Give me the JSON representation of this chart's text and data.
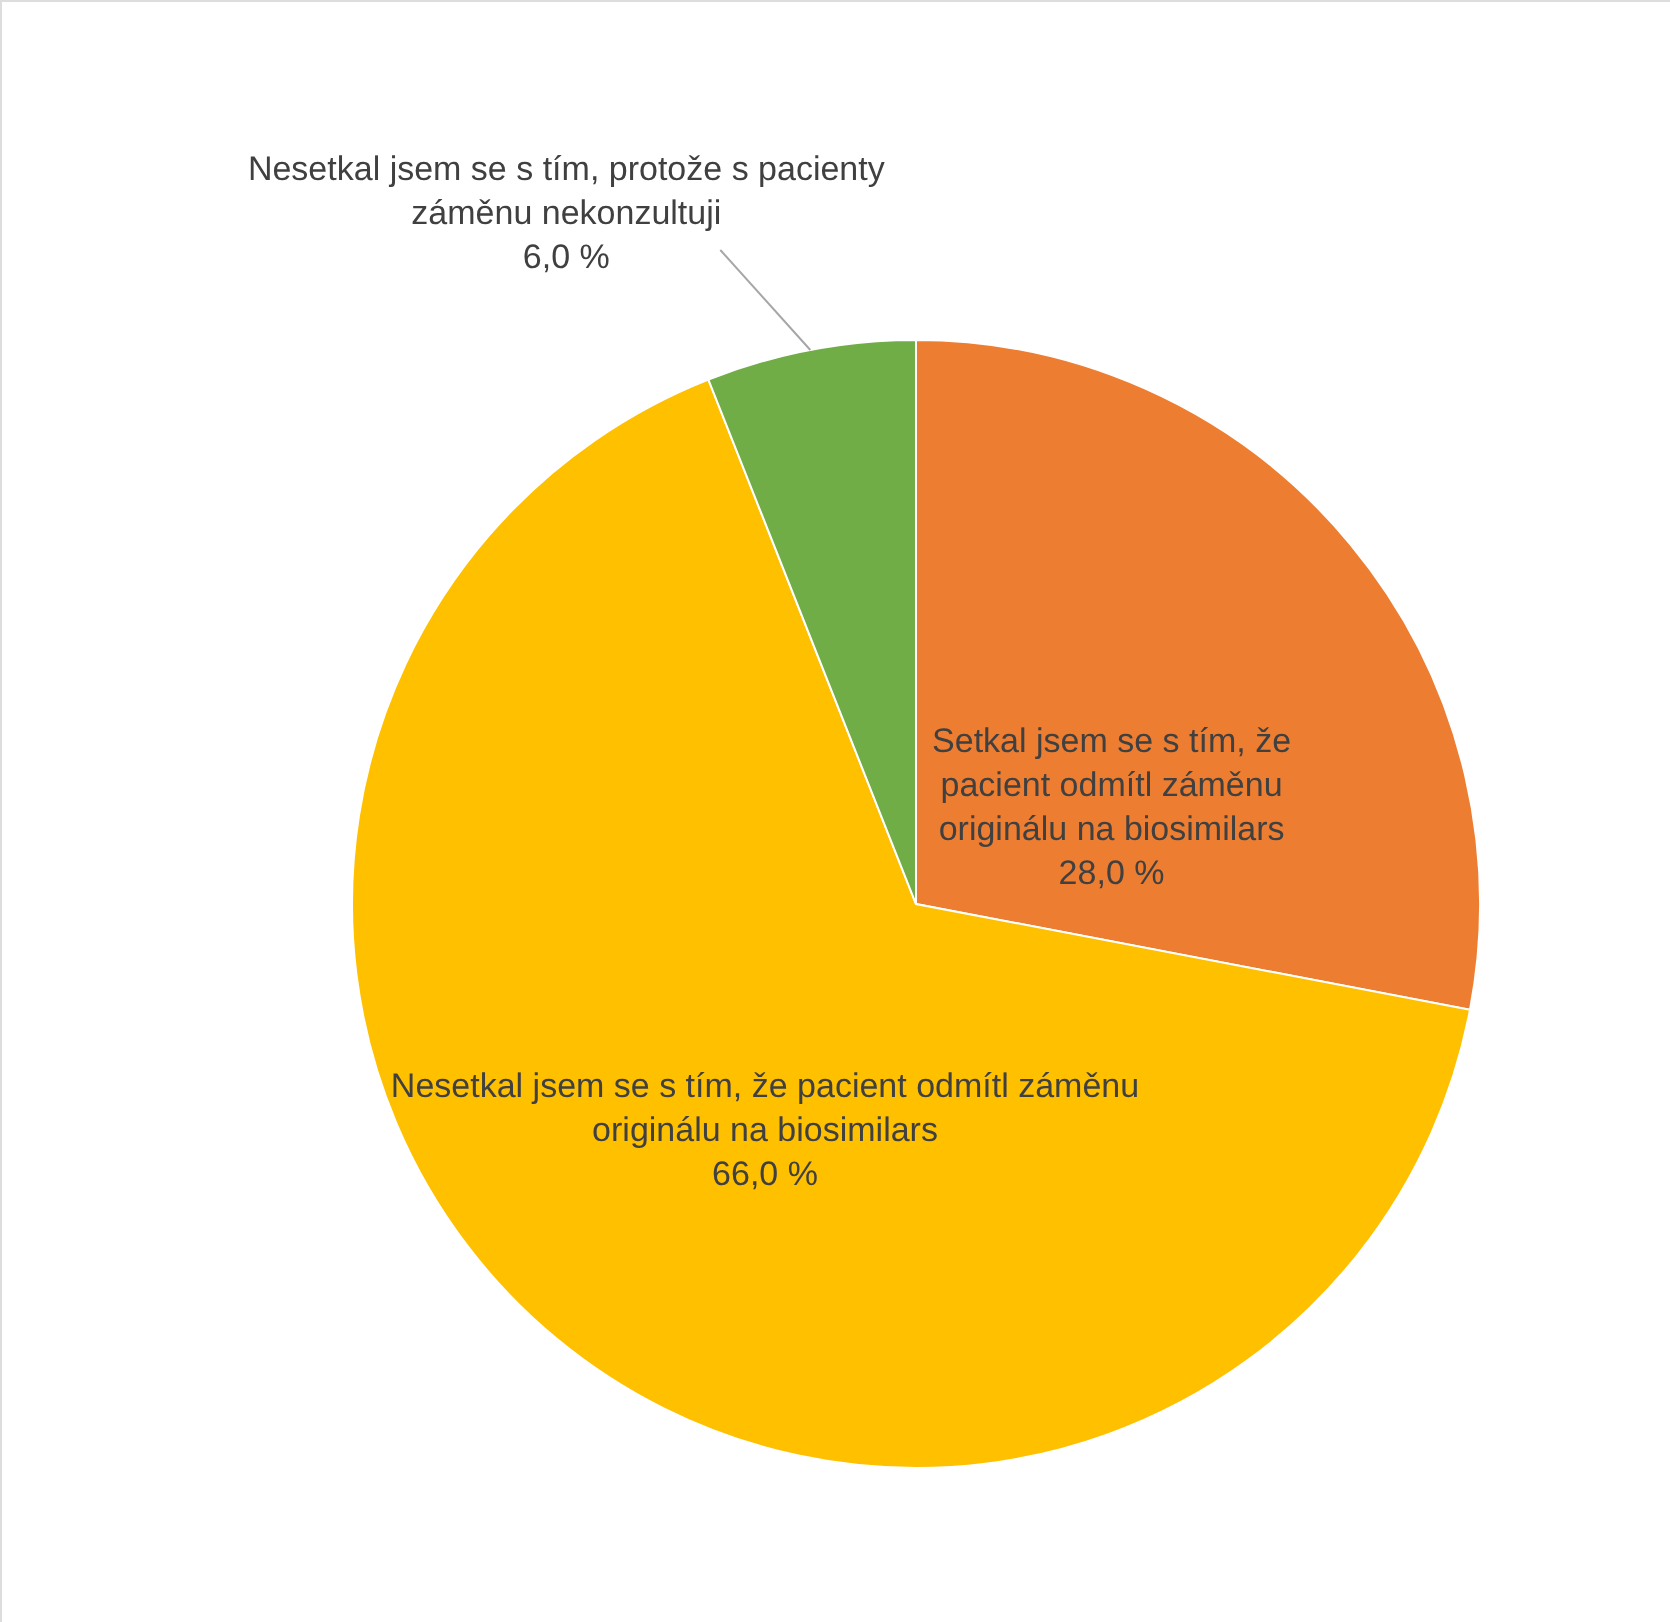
{
  "chart_data": {
    "type": "pie",
    "categories": [
      "Setkal jsem se s tím, že\npacient odmítl záměnu\noriginálu na biosimilars",
      "Nesetkal jsem se s tím, že pacient odmítl záměnu\noriginálu na biosimilars",
      "Nesetkal jsem se s tím, protože s pacienty\nzáměnu nekonzultuji"
    ],
    "values": [
      28,
      66,
      6
    ],
    "colors": [
      "#ed7d31",
      "#ffc000",
      "#70ad47"
    ],
    "value_labels": [
      "28,0 %",
      "66,0 %",
      "6,0 %"
    ]
  }
}
